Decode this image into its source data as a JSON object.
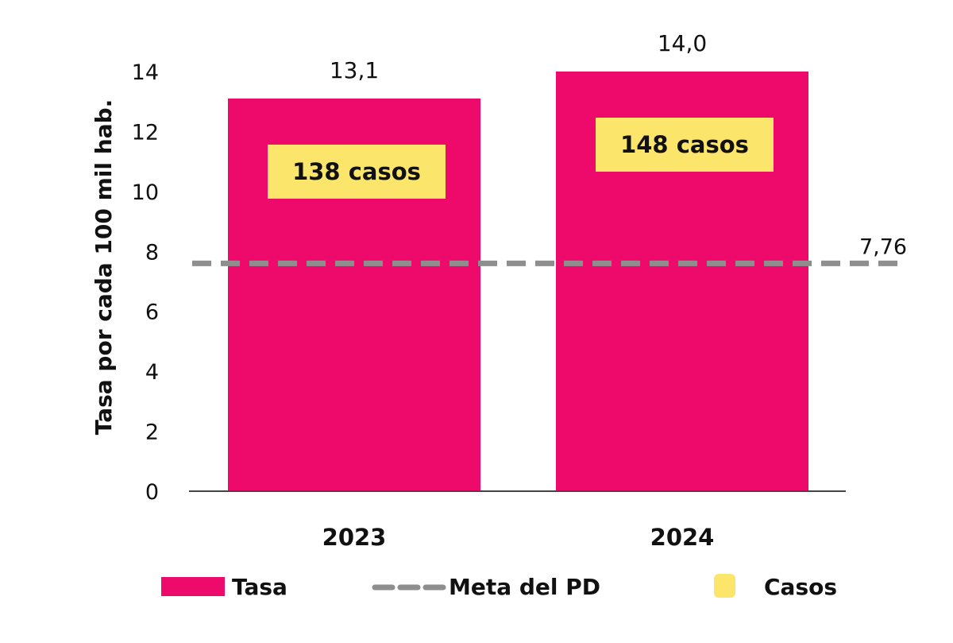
{
  "chart_data": {
    "type": "bar",
    "title": "",
    "xlabel": "",
    "ylabel": "Tasa por cada 100 mil hab.",
    "ylim": [
      0,
      14
    ],
    "yticks": [
      "0",
      "2",
      "4",
      "6",
      "8",
      "10",
      "12",
      "14"
    ],
    "categories": [
      "2023",
      "2024"
    ],
    "series": [
      {
        "name": "Tasa",
        "values": [
          13.1,
          14.0
        ],
        "labels": [
          "13,1",
          "14,0"
        ],
        "color": "#EE0A6A"
      }
    ],
    "cases": {
      "name": "Casos",
      "labels": [
        "138 casos",
        "148 casos"
      ],
      "color": "#FBE56A"
    },
    "target": {
      "name": "Meta del PD",
      "value": 7.76,
      "label": "7,76",
      "color": "#8E8E8E",
      "style": "dashed"
    },
    "grid": false,
    "legend": {
      "placement": "bottom",
      "items": [
        "Tasa",
        "Meta del PD",
        "Casos"
      ]
    }
  }
}
